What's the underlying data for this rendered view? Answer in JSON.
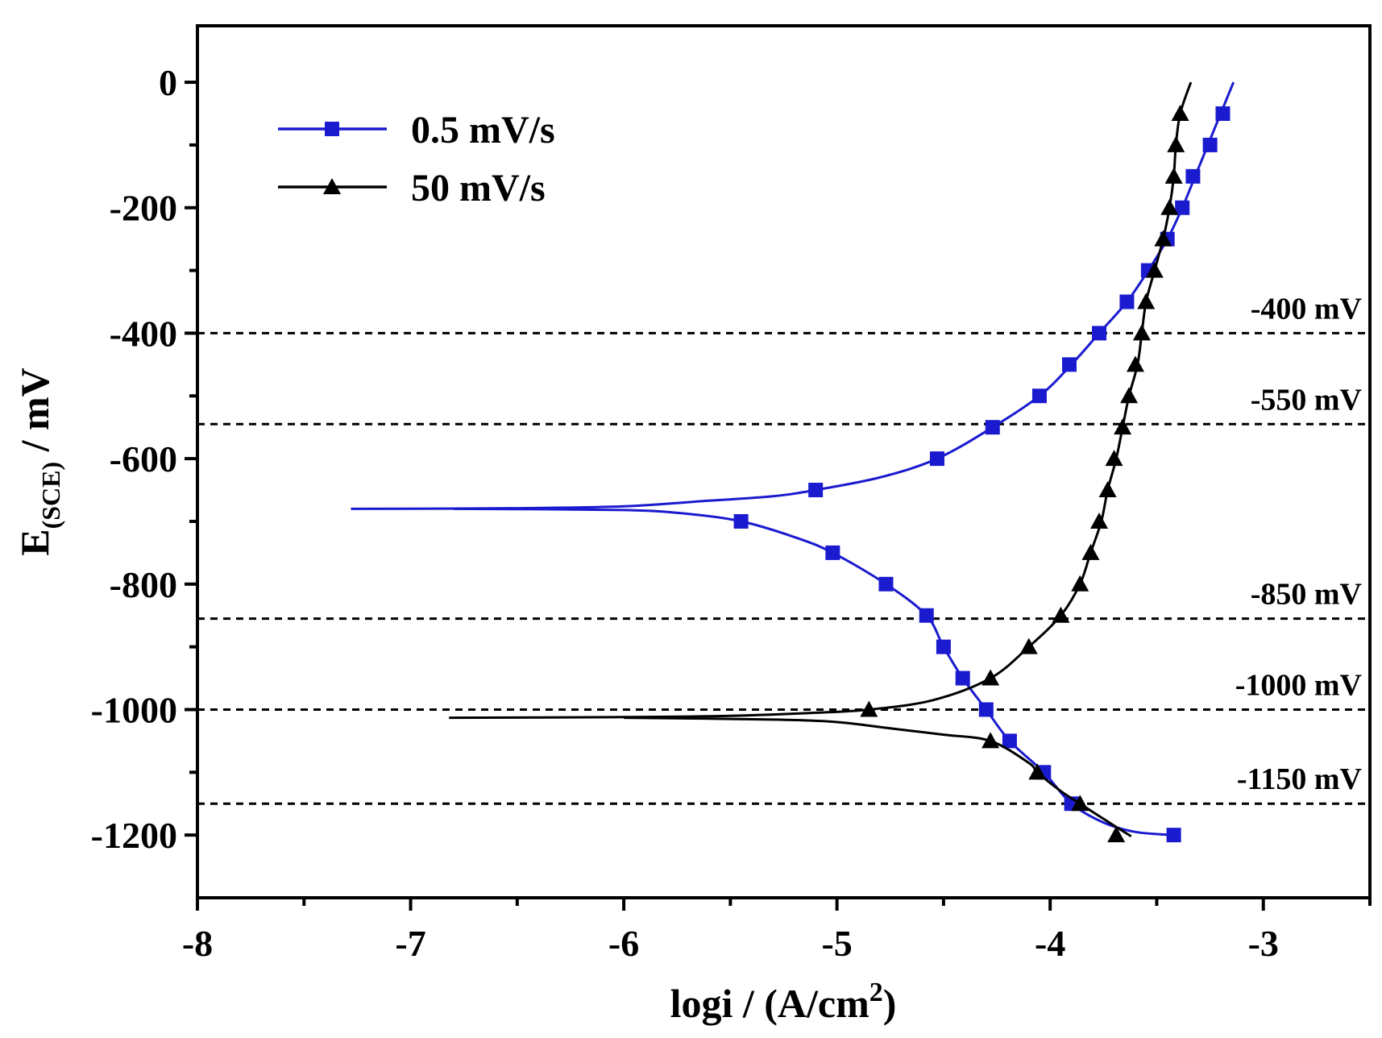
{
  "chart_data": {
    "type": "line",
    "xlabel": "logi / (A/cm",
    "xlabel_sup": "2",
    "xlabel_end": ")",
    "ylabel_main": "E",
    "ylabel_sub": "(SCE)",
    "ylabel_end": " / mV",
    "xlim": [
      -8,
      -2.5
    ],
    "ylim": [
      -1300,
      90
    ],
    "x_ticks": [
      -8,
      -7,
      -6,
      -5,
      -4,
      -3
    ],
    "x_tick_labels": [
      "-8",
      "-7",
      "-6",
      "-5",
      "-4",
      "-3"
    ],
    "x_minor_ticks": [
      -7.5,
      -6.5,
      -5.5,
      -4.5,
      -3.5,
      -2.5
    ],
    "y_ticks": [
      0,
      -200,
      -400,
      -600,
      -800,
      -1000,
      -1200
    ],
    "y_tick_labels": [
      "0",
      "-200",
      "-400",
      "-600",
      "-800",
      "-1000",
      "-1200"
    ],
    "y_minor_ticks": [
      -100,
      -300,
      -500,
      -700,
      -900,
      -1100
    ],
    "reference_lines": [
      {
        "y": -400,
        "label": "-400 mV"
      },
      {
        "y": -545,
        "label": "-550 mV"
      },
      {
        "y": -855,
        "label": "-850 mV"
      },
      {
        "y": -1000,
        "label": "-1000 mV"
      },
      {
        "y": -1150,
        "label": "-1150 mV"
      }
    ],
    "legend_position": "top-left",
    "series": [
      {
        "name": "0.5 mV/s",
        "color": "#1a1acf",
        "marker": "square",
        "line": [
          [
            -7.28,
            -680
          ],
          [
            -6.5,
            -679
          ],
          [
            -6.0,
            -676
          ],
          [
            -5.6,
            -667
          ],
          [
            -5.3,
            -660
          ],
          [
            -5.1,
            -650
          ],
          [
            -4.8,
            -630
          ],
          [
            -4.53,
            -600
          ],
          [
            -4.27,
            -550
          ],
          [
            -4.05,
            -500
          ],
          [
            -3.9,
            -450
          ],
          [
            -3.77,
            -400
          ],
          [
            -3.64,
            -350
          ],
          [
            -3.54,
            -300
          ],
          [
            -3.45,
            -250
          ],
          [
            -3.38,
            -200
          ],
          [
            -3.32,
            -150
          ],
          [
            -3.26,
            -100
          ],
          [
            -3.2,
            -50
          ],
          [
            -3.14,
            0
          ]
        ],
        "line2": [
          [
            -6.8,
            -680
          ],
          [
            -6.0,
            -682
          ],
          [
            -5.7,
            -688
          ],
          [
            -5.45,
            -700
          ],
          [
            -5.2,
            -725
          ],
          [
            -5.02,
            -750
          ],
          [
            -4.77,
            -800
          ],
          [
            -4.58,
            -850
          ],
          [
            -4.5,
            -900
          ],
          [
            -4.41,
            -950
          ],
          [
            -4.3,
            -1000
          ],
          [
            -4.19,
            -1050
          ],
          [
            -4.03,
            -1100
          ],
          [
            -3.9,
            -1150
          ],
          [
            -3.75,
            -1180
          ],
          [
            -3.6,
            -1195
          ],
          [
            -3.42,
            -1200
          ]
        ],
        "markers": [
          [
            -5.1,
            -650
          ],
          [
            -4.53,
            -600
          ],
          [
            -4.27,
            -550
          ],
          [
            -4.05,
            -500
          ],
          [
            -3.91,
            -450
          ],
          [
            -3.77,
            -400
          ],
          [
            -3.64,
            -350
          ],
          [
            -3.54,
            -300
          ],
          [
            -3.45,
            -250
          ],
          [
            -3.38,
            -200
          ],
          [
            -3.33,
            -150
          ],
          [
            -3.25,
            -100
          ],
          [
            -3.19,
            -50
          ],
          [
            -5.45,
            -700
          ],
          [
            -5.02,
            -750
          ],
          [
            -4.77,
            -800
          ],
          [
            -4.58,
            -850
          ],
          [
            -4.5,
            -900
          ],
          [
            -4.41,
            -950
          ],
          [
            -4.3,
            -1000
          ],
          [
            -4.19,
            -1050
          ],
          [
            -4.03,
            -1100
          ],
          [
            -3.9,
            -1150
          ],
          [
            -3.42,
            -1200
          ]
        ]
      },
      {
        "name": "50 mV/s",
        "color": "#000000",
        "marker": "triangle",
        "line": [
          [
            -6.82,
            -1013
          ],
          [
            -6.0,
            -1012
          ],
          [
            -5.5,
            -1010
          ],
          [
            -5.1,
            -1005
          ],
          [
            -4.85,
            -1000
          ],
          [
            -4.55,
            -985
          ],
          [
            -4.28,
            -950
          ],
          [
            -4.1,
            -900
          ],
          [
            -3.95,
            -850
          ],
          [
            -3.86,
            -800
          ],
          [
            -3.81,
            -750
          ],
          [
            -3.76,
            -700
          ],
          [
            -3.73,
            -650
          ],
          [
            -3.69,
            -600
          ],
          [
            -3.66,
            -550
          ],
          [
            -3.63,
            -500
          ],
          [
            -3.59,
            -450
          ],
          [
            -3.57,
            -400
          ],
          [
            -3.55,
            -350
          ],
          [
            -3.51,
            -300
          ],
          [
            -3.47,
            -250
          ],
          [
            -3.44,
            -200
          ],
          [
            -3.42,
            -150
          ],
          [
            -3.41,
            -100
          ],
          [
            -3.39,
            -50
          ],
          [
            -3.34,
            0
          ]
        ],
        "line2": [
          [
            -6.0,
            -1013
          ],
          [
            -5.3,
            -1016
          ],
          [
            -5.0,
            -1020
          ],
          [
            -4.75,
            -1030
          ],
          [
            -4.5,
            -1040
          ],
          [
            -4.28,
            -1050
          ],
          [
            -4.1,
            -1085
          ],
          [
            -4.06,
            -1100
          ],
          [
            -3.95,
            -1130
          ],
          [
            -3.86,
            -1150
          ],
          [
            -3.7,
            -1185
          ],
          [
            -3.62,
            -1202
          ]
        ],
        "markers": [
          [
            -4.85,
            -1000
          ],
          [
            -4.28,
            -950
          ],
          [
            -4.1,
            -900
          ],
          [
            -3.95,
            -850
          ],
          [
            -3.86,
            -800
          ],
          [
            -3.81,
            -750
          ],
          [
            -3.77,
            -700
          ],
          [
            -3.73,
            -650
          ],
          [
            -3.7,
            -600
          ],
          [
            -3.66,
            -550
          ],
          [
            -3.63,
            -500
          ],
          [
            -3.6,
            -450
          ],
          [
            -3.57,
            -400
          ],
          [
            -3.55,
            -350
          ],
          [
            -3.51,
            -300
          ],
          [
            -3.47,
            -250
          ],
          [
            -3.44,
            -200
          ],
          [
            -3.42,
            -150
          ],
          [
            -3.41,
            -100
          ],
          [
            -3.39,
            -50
          ],
          [
            -4.28,
            -1050
          ],
          [
            -4.06,
            -1100
          ],
          [
            -3.86,
            -1150
          ],
          [
            -3.69,
            -1200
          ]
        ]
      }
    ]
  }
}
